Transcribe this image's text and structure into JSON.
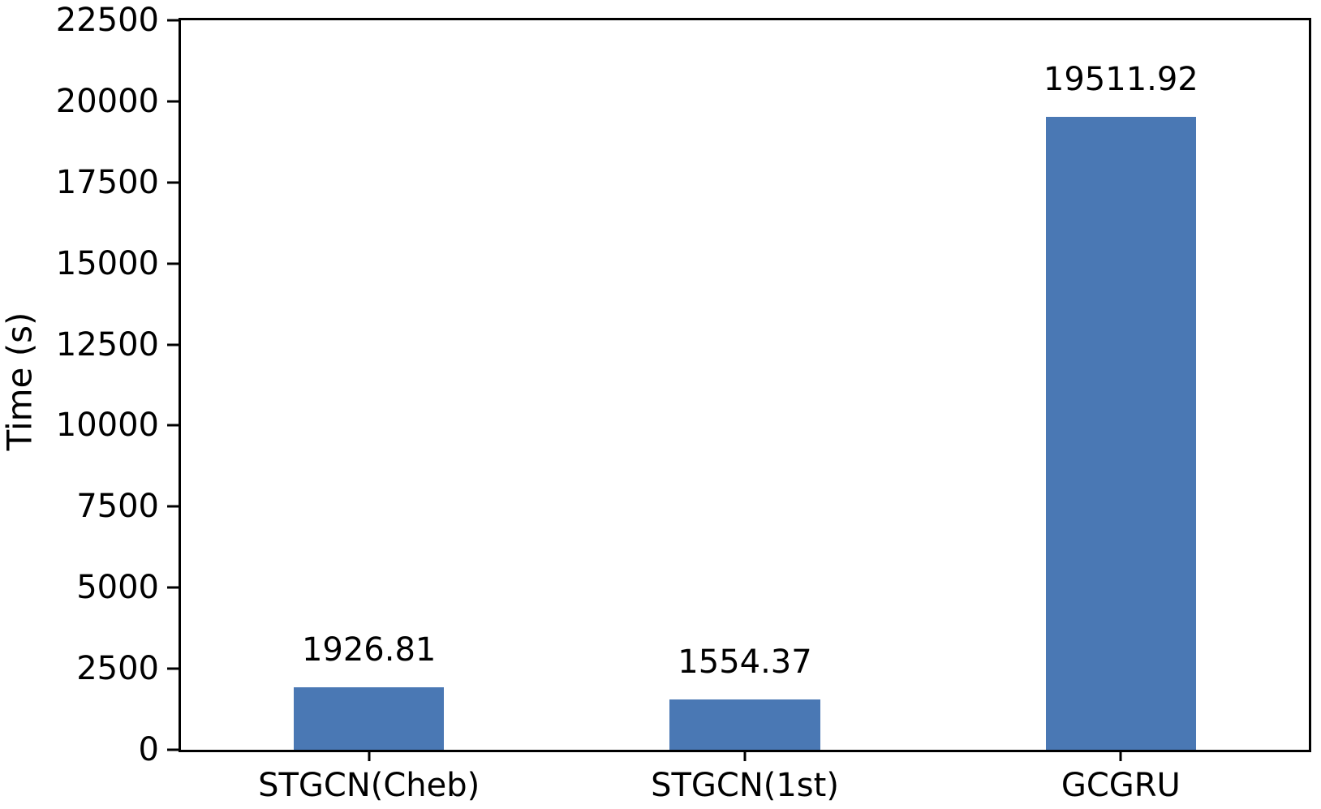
{
  "chart_data": {
    "type": "bar",
    "title": "",
    "categories": [
      "STGCN(Cheb)",
      "STGCN(1st)",
      "GCGRU"
    ],
    "values": [
      1926.81,
      1554.37,
      19511.92
    ],
    "value_labels": [
      "1926.81",
      "1554.37",
      "19511.92"
    ],
    "xlabel": "",
    "ylabel": "Time (s)",
    "ylim": [
      0,
      22500
    ],
    "yticks": [
      0,
      2500,
      5000,
      7500,
      10000,
      12500,
      15000,
      17500,
      20000,
      22500
    ],
    "grid": false,
    "legend_position": "none",
    "bar_width_fraction": 0.4,
    "bar_color": "#4A78B4",
    "axis_color": "#000000",
    "text_color": "#000000",
    "background_color": "#FFFFFF"
  }
}
